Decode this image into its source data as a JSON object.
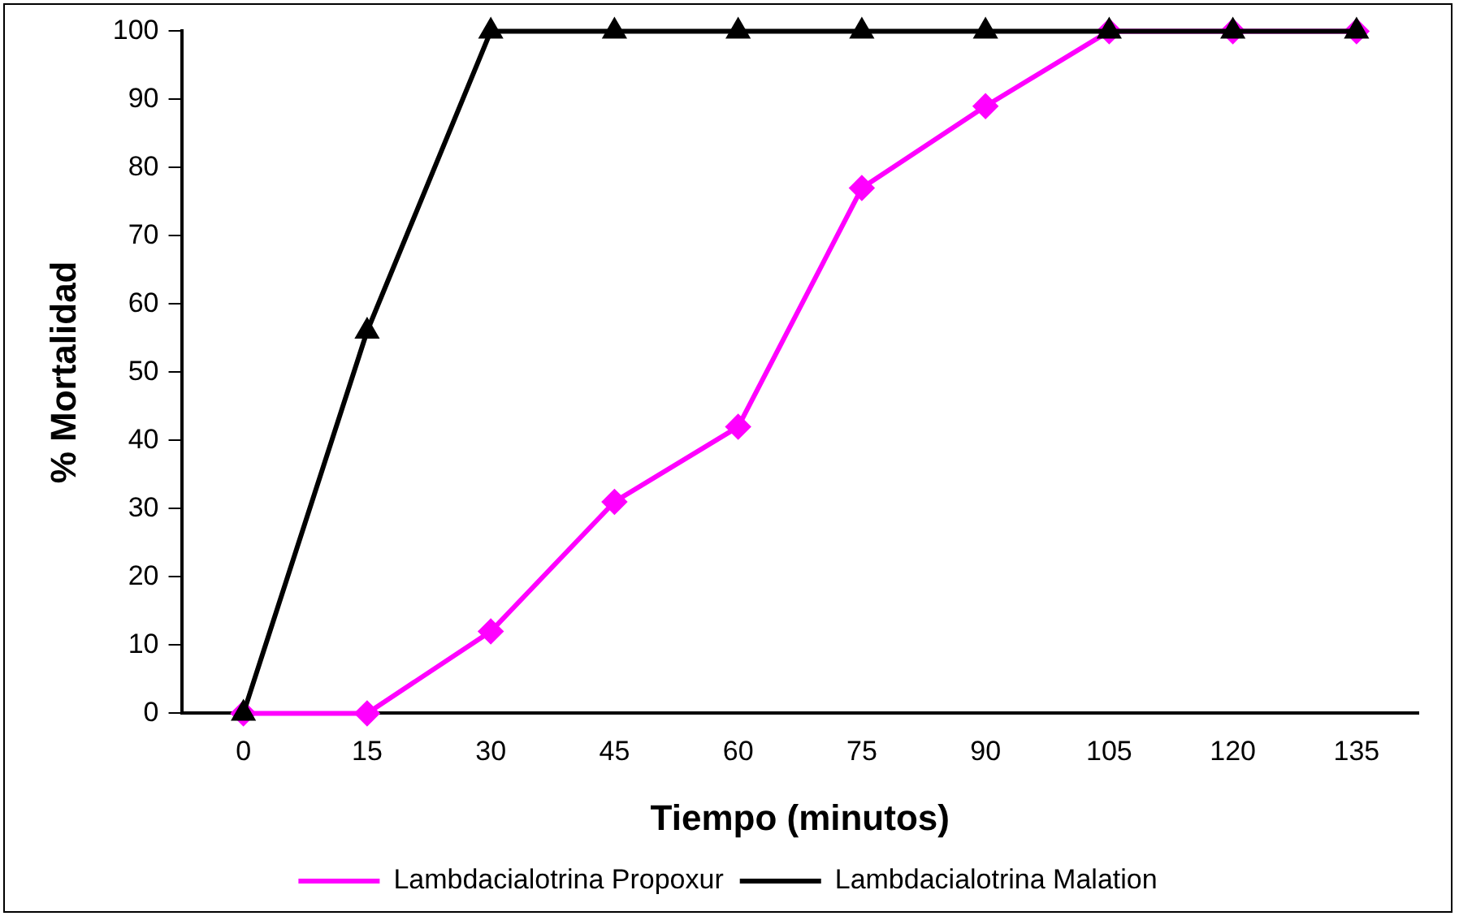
{
  "chart_data": {
    "type": "line",
    "xlabel": "Tiempo (minutos)",
    "ylabel": "% Mortalidad",
    "categories": [
      "0",
      "15",
      "30",
      "45",
      "60",
      "75",
      "90",
      "105",
      "120",
      "135"
    ],
    "series": [
      {
        "name": "Lambdacialotrina Propoxur",
        "color": "#ff00ff",
        "marker": "diamond",
        "values": [
          0,
          0,
          12,
          31,
          42,
          77,
          89,
          100,
          100,
          100
        ]
      },
      {
        "name": "Lambdacialotrina Malation",
        "color": "#000000",
        "marker": "triangle",
        "values": [
          0,
          56,
          100,
          100,
          100,
          100,
          100,
          100,
          100,
          100
        ]
      }
    ],
    "ylim": [
      0,
      100
    ],
    "yticks": [
      0,
      10,
      20,
      30,
      40,
      50,
      60,
      70,
      80,
      90,
      100
    ],
    "grid": false,
    "legend": "bottom"
  }
}
